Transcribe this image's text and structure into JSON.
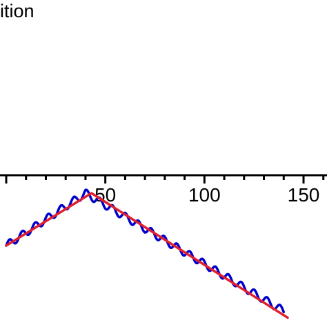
{
  "chart_data": {
    "type": "line",
    "title": "ition",
    "xlabel": "",
    "ylabel": "",
    "x_axis": {
      "ticks_labeled": [
        50,
        100,
        150
      ],
      "tick_labels": [
        "50",
        "100",
        "150"
      ],
      "major_tick_step": 10,
      "visible_range": [
        0,
        175
      ]
    },
    "series": [
      {
        "color": "#0000cc",
        "style": "oscillating",
        "points": [
          [
            0,
            -0.8
          ],
          [
            40,
            0.0
          ],
          [
            140,
            -1.8
          ]
        ],
        "oscillation_period": 6.5
      },
      {
        "color": "#e0202f",
        "style": "smooth",
        "points": [
          [
            0,
            -0.8
          ],
          [
            43,
            0.0
          ],
          [
            142,
            -1.9
          ]
        ]
      }
    ],
    "grid": false,
    "legend": "none"
  },
  "colors": {
    "axis": "#000000",
    "blue": "#0000cc",
    "red": "#e0202f",
    "background": "#ffffff"
  }
}
